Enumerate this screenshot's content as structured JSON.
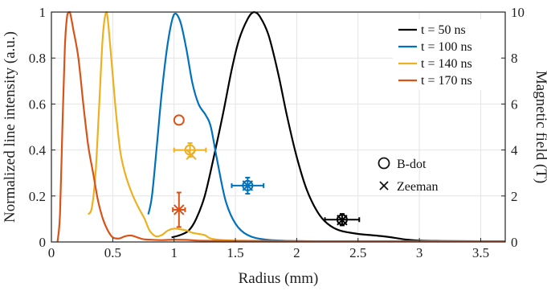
{
  "chart_data": {
    "type": "line",
    "xlabel": "Radius (mm)",
    "ylabel": "Normalized line intensity (a.u.)",
    "y2label": "Magnetic field (T)",
    "xlim": [
      0,
      3.7
    ],
    "ylim": [
      0,
      1
    ],
    "y2lim": [
      0,
      10
    ],
    "x_ticks": [
      "0",
      "0.5",
      "1",
      "1.5",
      "2",
      "2.5",
      "3",
      "3.5"
    ],
    "y_ticks": [
      "0",
      "0.2",
      "0.4",
      "0.6",
      "0.8",
      "1"
    ],
    "y2_ticks": [
      "0",
      "2",
      "4",
      "6",
      "8",
      "10"
    ],
    "grid": true,
    "legend_position": "top-right",
    "series": [
      {
        "name": "t = 50 ns",
        "color": "#000000",
        "points": [
          [
            0.98,
            0.02
          ],
          [
            1.05,
            0.03
          ],
          [
            1.12,
            0.05
          ],
          [
            1.18,
            0.1
          ],
          [
            1.25,
            0.2
          ],
          [
            1.32,
            0.36
          ],
          [
            1.4,
            0.56
          ],
          [
            1.47,
            0.75
          ],
          [
            1.53,
            0.88
          ],
          [
            1.6,
            0.97
          ],
          [
            1.65,
            1.0
          ],
          [
            1.7,
            0.98
          ],
          [
            1.77,
            0.9
          ],
          [
            1.85,
            0.73
          ],
          [
            1.92,
            0.55
          ],
          [
            2.0,
            0.37
          ],
          [
            2.08,
            0.23
          ],
          [
            2.17,
            0.13
          ],
          [
            2.25,
            0.08
          ],
          [
            2.35,
            0.05
          ],
          [
            2.5,
            0.035
          ],
          [
            2.6,
            0.03
          ],
          [
            2.7,
            0.025
          ],
          [
            2.8,
            0.018
          ],
          [
            2.9,
            0.01
          ],
          [
            3.0,
            0.006
          ],
          [
            3.2,
            0.004
          ],
          [
            3.5,
            0.003
          ],
          [
            3.7,
            0.002
          ]
        ]
      },
      {
        "name": "t = 100 ns",
        "color": "#0072BD",
        "points": [
          [
            0.79,
            0.12
          ],
          [
            0.82,
            0.2
          ],
          [
            0.86,
            0.42
          ],
          [
            0.9,
            0.65
          ],
          [
            0.95,
            0.87
          ],
          [
            1.0,
            0.99
          ],
          [
            1.05,
            0.96
          ],
          [
            1.1,
            0.84
          ],
          [
            1.15,
            0.69
          ],
          [
            1.2,
            0.6
          ],
          [
            1.26,
            0.55
          ],
          [
            1.3,
            0.5
          ],
          [
            1.35,
            0.36
          ],
          [
            1.42,
            0.18
          ],
          [
            1.5,
            0.08
          ],
          [
            1.6,
            0.03
          ],
          [
            1.75,
            0.01
          ],
          [
            2.0,
            0.004
          ],
          [
            2.3,
            0.002
          ]
        ]
      },
      {
        "name": "t = 140 ns",
        "color": "#EDB120",
        "points": [
          [
            0.3,
            0.12
          ],
          [
            0.33,
            0.15
          ],
          [
            0.36,
            0.3
          ],
          [
            0.39,
            0.6
          ],
          [
            0.42,
            0.9
          ],
          [
            0.45,
            1.0
          ],
          [
            0.48,
            0.85
          ],
          [
            0.52,
            0.6
          ],
          [
            0.56,
            0.4
          ],
          [
            0.6,
            0.3
          ],
          [
            0.65,
            0.22
          ],
          [
            0.7,
            0.16
          ],
          [
            0.76,
            0.1
          ],
          [
            0.8,
            0.05
          ],
          [
            0.85,
            0.025
          ],
          [
            0.9,
            0.03
          ],
          [
            0.95,
            0.05
          ],
          [
            1.0,
            0.058
          ],
          [
            1.05,
            0.055
          ],
          [
            1.1,
            0.05
          ],
          [
            1.15,
            0.04
          ],
          [
            1.2,
            0.035
          ],
          [
            1.25,
            0.03
          ],
          [
            1.3,
            0.015
          ],
          [
            1.4,
            0.008
          ],
          [
            1.6,
            0.005
          ],
          [
            2.0,
            0.003
          ],
          [
            2.5,
            0.002
          ],
          [
            3.0,
            0.002
          ],
          [
            3.5,
            0.002
          ],
          [
            3.7,
            0.002
          ]
        ]
      },
      {
        "name": "t = 170 ns",
        "color": "#D95319",
        "points": [
          [
            0.05,
            0.0
          ],
          [
            0.07,
            0.12
          ],
          [
            0.09,
            0.5
          ],
          [
            0.11,
            0.85
          ],
          [
            0.13,
            0.99
          ],
          [
            0.15,
            1.0
          ],
          [
            0.18,
            0.92
          ],
          [
            0.22,
            0.8
          ],
          [
            0.26,
            0.6
          ],
          [
            0.3,
            0.42
          ],
          [
            0.34,
            0.3
          ],
          [
            0.38,
            0.18
          ],
          [
            0.42,
            0.1
          ],
          [
            0.46,
            0.05
          ],
          [
            0.5,
            0.02
          ],
          [
            0.55,
            0.015
          ],
          [
            0.6,
            0.025
          ],
          [
            0.65,
            0.028
          ],
          [
            0.7,
            0.02
          ],
          [
            0.75,
            0.012
          ],
          [
            0.8,
            0.01
          ],
          [
            0.9,
            0.008
          ],
          [
            1.0,
            0.01
          ],
          [
            1.1,
            0.009
          ],
          [
            1.2,
            0.006
          ],
          [
            1.4,
            0.005
          ],
          [
            1.8,
            0.004
          ],
          [
            2.5,
            0.003
          ],
          [
            3.0,
            0.003
          ],
          [
            3.5,
            0.003
          ],
          [
            3.7,
            0.003
          ]
        ]
      }
    ],
    "field_measurements": [
      {
        "method": "B-dot",
        "color": "#D95319",
        "r": 1.04,
        "B": 5.3,
        "r_err": 0,
        "B_err": 0
      },
      {
        "method": "B-dot",
        "color": "#EDB120",
        "r": 1.13,
        "B": 4.0,
        "r_err": 0.13,
        "B_err": 0.3
      },
      {
        "method": "B-dot",
        "color": "#0072BD",
        "r": 1.6,
        "B": 2.45,
        "r_err": 0.13,
        "B_err": 0.35
      },
      {
        "method": "B-dot",
        "color": "#000000",
        "r": 2.37,
        "B": 0.97,
        "r_err": 0.14,
        "B_err": 0.25
      },
      {
        "method": "Zeeman",
        "color": "#D95319",
        "r": 1.04,
        "B": 1.4,
        "r_err": 0.05,
        "B_err": 0.75
      },
      {
        "method": "Zeeman",
        "color": "#EDB120",
        "r": 1.14,
        "B": 3.8,
        "r_err": 0,
        "B_err": 0
      },
      {
        "method": "Zeeman",
        "color": "#0072BD",
        "r": 1.6,
        "B": 2.45,
        "r_err": 0,
        "B_err": 0
      },
      {
        "method": "Zeeman",
        "color": "#000000",
        "r": 2.37,
        "B": 0.95,
        "r_err": 0,
        "B_err": 0
      }
    ],
    "marker_legend": [
      {
        "symbol": "circle",
        "label": "B-dot"
      },
      {
        "symbol": "cross",
        "label": "Zeeman"
      }
    ]
  }
}
